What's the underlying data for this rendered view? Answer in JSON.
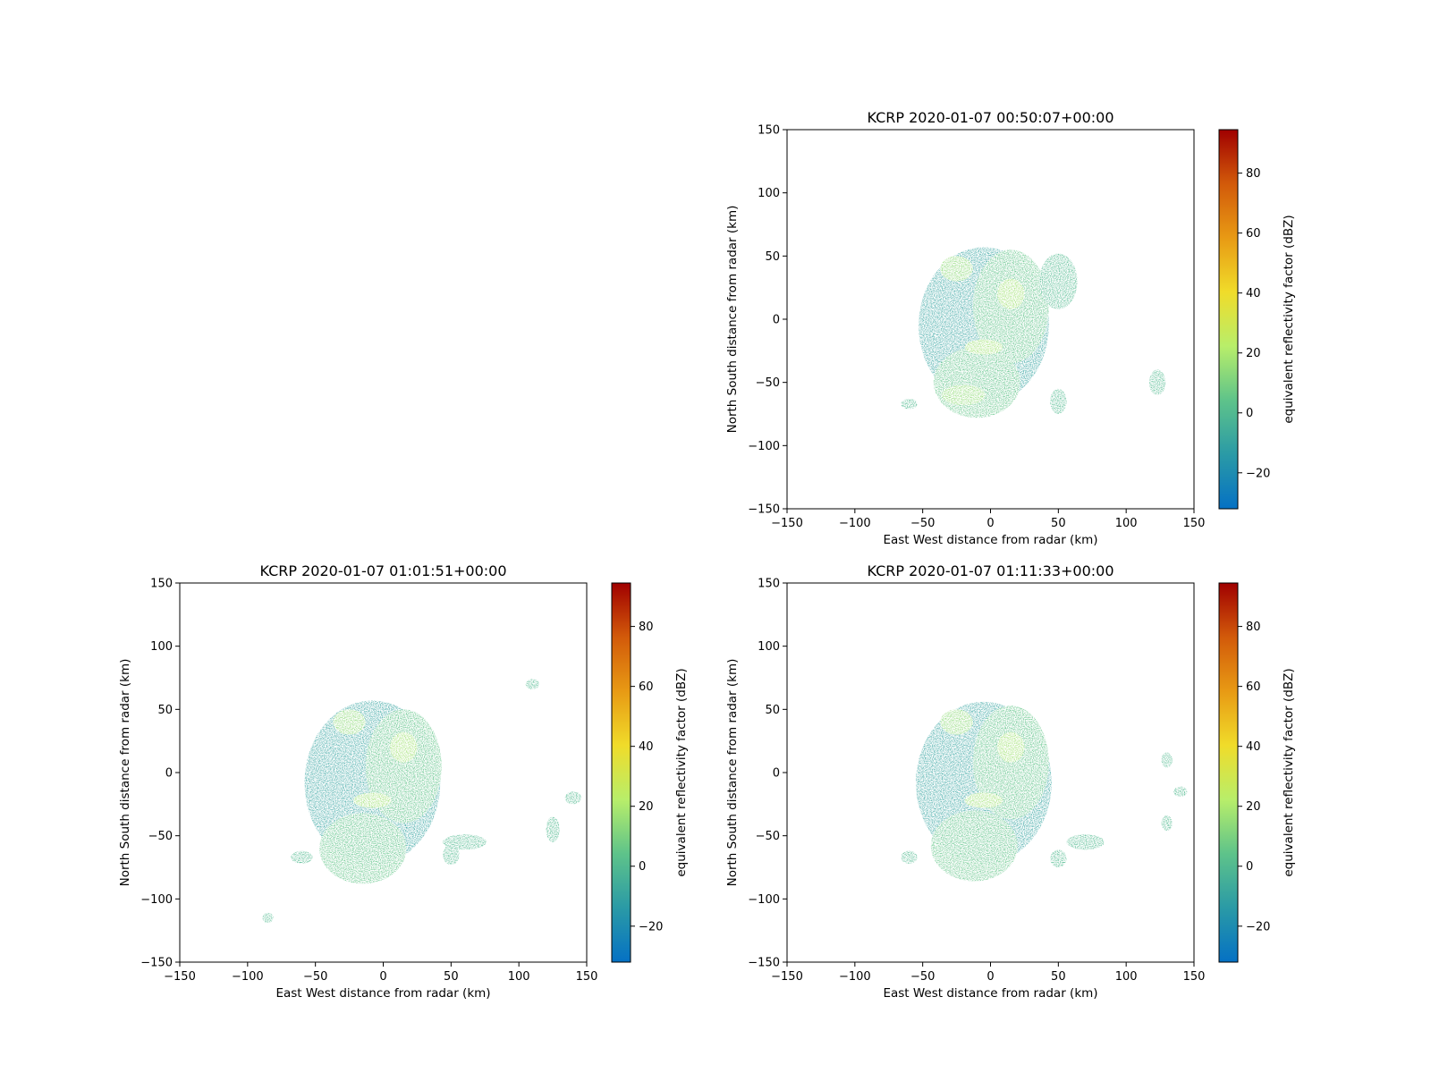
{
  "chart_data": [
    {
      "type": "heatmap",
      "title": "KCRP 2020-01-07 00:50:07+00:00",
      "xlabel": "East West distance from radar (km)",
      "ylabel": "North South distance from radar (km)",
      "xlim": [
        -150,
        150
      ],
      "ylim": [
        -150,
        150
      ],
      "xticks": [
        -150,
        -100,
        -50,
        0,
        50,
        100,
        150
      ],
      "yticks": [
        -150,
        -100,
        -50,
        0,
        50,
        100,
        150
      ],
      "colorbar": {
        "label": "equivalent reflectivity factor (dBZ)",
        "range": [
          -32,
          94.5
        ],
        "ticks": [
          -20,
          0,
          20,
          40,
          60,
          80
        ],
        "colormap": [
          "#0571c4",
          "#2a9aa6",
          "#5ec38a",
          "#b8ee6a",
          "#f0dc2a",
          "#e89a14",
          "#d25a0a",
          "#a00000"
        ]
      },
      "regions": [
        {
          "x": -5,
          "y": -5,
          "rx": 48,
          "ry": 62,
          "value": -10
        },
        {
          "x": 15,
          "y": 10,
          "rx": 28,
          "ry": 45,
          "value": 5
        },
        {
          "x": -10,
          "y": -50,
          "rx": 32,
          "ry": 28,
          "value": 5
        },
        {
          "x": -25,
          "y": 40,
          "rx": 12,
          "ry": 10,
          "value": 15
        },
        {
          "x": 15,
          "y": 20,
          "rx": 10,
          "ry": 12,
          "value": 18
        },
        {
          "x": -5,
          "y": -22,
          "rx": 14,
          "ry": 6,
          "value": 18
        },
        {
          "x": 50,
          "y": 30,
          "rx": 14,
          "ry": 22,
          "value": 0
        },
        {
          "x": -20,
          "y": -60,
          "rx": 16,
          "ry": 8,
          "value": 15
        },
        {
          "x": 50,
          "y": -65,
          "rx": 6,
          "ry": 10,
          "value": 0
        },
        {
          "x": 123,
          "y": -50,
          "rx": 6,
          "ry": 10,
          "value": 0
        },
        {
          "x": -60,
          "y": -67,
          "rx": 6,
          "ry": 4,
          "value": 0
        }
      ]
    },
    {
      "type": "heatmap",
      "title": "KCRP 2020-01-07 01:01:51+00:00",
      "xlabel": "East West distance from radar (km)",
      "ylabel": "North South distance from radar (km)",
      "xlim": [
        -150,
        150
      ],
      "ylim": [
        -150,
        150
      ],
      "xticks": [
        -150,
        -100,
        -50,
        0,
        50,
        100,
        150
      ],
      "yticks": [
        -150,
        -100,
        -50,
        0,
        50,
        100,
        150
      ],
      "colorbar": {
        "label": "equivalent reflectivity factor (dBZ)",
        "range": [
          -32,
          94.5
        ],
        "ticks": [
          -20,
          0,
          20,
          40,
          60,
          80
        ],
        "colormap": [
          "#0571c4",
          "#2a9aa6",
          "#5ec38a",
          "#b8ee6a",
          "#f0dc2a",
          "#e89a14",
          "#d25a0a",
          "#a00000"
        ]
      },
      "regions": [
        {
          "x": -8,
          "y": -8,
          "rx": 50,
          "ry": 65,
          "value": -10
        },
        {
          "x": 15,
          "y": 5,
          "rx": 28,
          "ry": 45,
          "value": 5
        },
        {
          "x": -15,
          "y": -60,
          "rx": 32,
          "ry": 28,
          "value": 5
        },
        {
          "x": -25,
          "y": 40,
          "rx": 12,
          "ry": 10,
          "value": 15
        },
        {
          "x": 15,
          "y": 20,
          "rx": 10,
          "ry": 12,
          "value": 18
        },
        {
          "x": -8,
          "y": -22,
          "rx": 14,
          "ry": 6,
          "value": 18
        },
        {
          "x": 60,
          "y": -55,
          "rx": 16,
          "ry": 6,
          "value": 0
        },
        {
          "x": 50,
          "y": -65,
          "rx": 6,
          "ry": 8,
          "value": 0
        },
        {
          "x": -60,
          "y": -67,
          "rx": 8,
          "ry": 5,
          "value": 0
        },
        {
          "x": 125,
          "y": -45,
          "rx": 5,
          "ry": 10,
          "value": 0
        },
        {
          "x": 140,
          "y": -20,
          "rx": 6,
          "ry": 5,
          "value": 0
        },
        {
          "x": -85,
          "y": -115,
          "rx": 4,
          "ry": 4,
          "value": 0
        },
        {
          "x": 110,
          "y": 70,
          "rx": 5,
          "ry": 4,
          "value": 0
        }
      ]
    },
    {
      "type": "heatmap",
      "title": "KCRP 2020-01-07 01:11:33+00:00",
      "xlabel": "East West distance from radar (km)",
      "ylabel": "North South distance from radar (km)",
      "xlim": [
        -150,
        150
      ],
      "ylim": [
        -150,
        150
      ],
      "xticks": [
        -150,
        -100,
        -50,
        0,
        50,
        100,
        150
      ],
      "yticks": [
        -150,
        -100,
        -50,
        0,
        50,
        100,
        150
      ],
      "colorbar": {
        "label": "equivalent reflectivity factor (dBZ)",
        "range": [
          -32,
          94.5
        ],
        "ticks": [
          -20,
          0,
          20,
          40,
          60,
          80
        ],
        "colormap": [
          "#0571c4",
          "#2a9aa6",
          "#5ec38a",
          "#b8ee6a",
          "#f0dc2a",
          "#e89a14",
          "#d25a0a",
          "#a00000"
        ]
      },
      "regions": [
        {
          "x": -5,
          "y": -8,
          "rx": 50,
          "ry": 64,
          "value": -10
        },
        {
          "x": 15,
          "y": 8,
          "rx": 28,
          "ry": 45,
          "value": 5
        },
        {
          "x": -12,
          "y": -58,
          "rx": 32,
          "ry": 28,
          "value": 5
        },
        {
          "x": -25,
          "y": 40,
          "rx": 12,
          "ry": 10,
          "value": 15
        },
        {
          "x": 15,
          "y": 20,
          "rx": 10,
          "ry": 12,
          "value": 18
        },
        {
          "x": -5,
          "y": -22,
          "rx": 14,
          "ry": 6,
          "value": 18
        },
        {
          "x": 70,
          "y": -55,
          "rx": 14,
          "ry": 6,
          "value": 0
        },
        {
          "x": 50,
          "y": -68,
          "rx": 6,
          "ry": 7,
          "value": 0
        },
        {
          "x": -60,
          "y": -67,
          "rx": 6,
          "ry": 5,
          "value": 0
        },
        {
          "x": 130,
          "y": 10,
          "rx": 4,
          "ry": 6,
          "value": 0
        },
        {
          "x": 140,
          "y": -15,
          "rx": 5,
          "ry": 4,
          "value": 0
        },
        {
          "x": 130,
          "y": -40,
          "rx": 4,
          "ry": 6,
          "value": 0
        }
      ]
    }
  ]
}
